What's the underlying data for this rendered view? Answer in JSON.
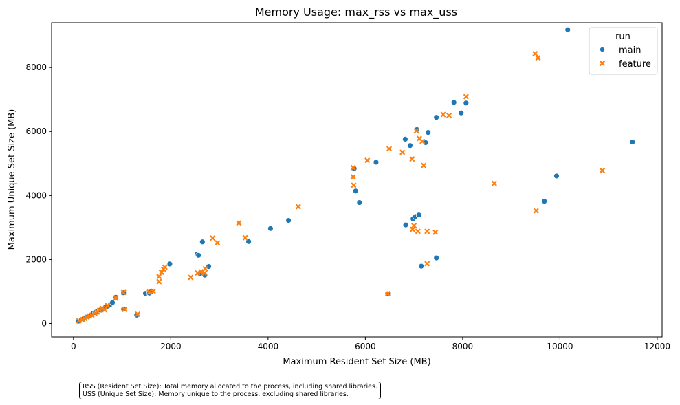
{
  "chart_data": {
    "type": "scatter",
    "title": "Memory Usage: max_rss vs max_uss",
    "xlabel": "Maximum Resident Set Size (MB)",
    "ylabel": "Maximum Unique Set Size (MB)",
    "xlim": [
      -450,
      12100
    ],
    "ylim": [
      -420,
      9400
    ],
    "xticks": [
      0,
      2000,
      4000,
      6000,
      8000,
      10000,
      12000
    ],
    "xtick_labels": [
      "0",
      "2000",
      "4000",
      "6000",
      "8000",
      "10000",
      "12000"
    ],
    "yticks": [
      0,
      2000,
      4000,
      6000,
      8000
    ],
    "ytick_labels": [
      "0",
      "2000",
      "4000",
      "6000",
      "8000"
    ],
    "grid": false,
    "legend": {
      "title": "run",
      "placement": "top-right"
    },
    "series": [
      {
        "name": "main",
        "marker": "circle",
        "color": "#1f77b4",
        "points": [
          [
            100,
            70
          ],
          [
            160,
            110
          ],
          [
            200,
            140
          ],
          [
            250,
            180
          ],
          [
            300,
            220
          ],
          [
            330,
            240
          ],
          [
            370,
            280
          ],
          [
            400,
            310
          ],
          [
            450,
            340
          ],
          [
            500,
            380
          ],
          [
            550,
            420
          ],
          [
            600,
            460
          ],
          [
            650,
            500
          ],
          [
            700,
            540
          ],
          [
            760,
            600
          ],
          [
            800,
            650
          ],
          [
            870,
            820
          ],
          [
            1030,
            960
          ],
          [
            1030,
            450
          ],
          [
            1300,
            260
          ],
          [
            1480,
            940
          ],
          [
            1560,
            950
          ],
          [
            1600,
            1000
          ],
          [
            1980,
            1860
          ],
          [
            2540,
            2170
          ],
          [
            2570,
            2130
          ],
          [
            2600,
            1560
          ],
          [
            2650,
            2550
          ],
          [
            2700,
            1510
          ],
          [
            2780,
            1780
          ],
          [
            3600,
            2560
          ],
          [
            4050,
            2970
          ],
          [
            4420,
            3220
          ],
          [
            5770,
            4840
          ],
          [
            5800,
            4140
          ],
          [
            5880,
            3780
          ],
          [
            6220,
            5040
          ],
          [
            6460,
            930
          ],
          [
            6820,
            5760
          ],
          [
            6830,
            3080
          ],
          [
            6920,
            5560
          ],
          [
            6980,
            3270
          ],
          [
            7030,
            3340
          ],
          [
            7060,
            6060
          ],
          [
            7100,
            3390
          ],
          [
            7150,
            1790
          ],
          [
            7240,
            5650
          ],
          [
            7290,
            5970
          ],
          [
            7460,
            2050
          ],
          [
            7460,
            6440
          ],
          [
            7820,
            6910
          ],
          [
            7970,
            6580
          ],
          [
            8070,
            6890
          ],
          [
            9680,
            3820
          ],
          [
            9930,
            4610
          ],
          [
            10160,
            9180
          ],
          [
            11490,
            5670
          ]
        ]
      },
      {
        "name": "feature",
        "marker": "x",
        "color": "#ff7f0e",
        "points": [
          [
            110,
            80
          ],
          [
            180,
            120
          ],
          [
            230,
            160
          ],
          [
            280,
            200
          ],
          [
            330,
            230
          ],
          [
            380,
            260
          ],
          [
            440,
            320
          ],
          [
            490,
            360
          ],
          [
            540,
            420
          ],
          [
            590,
            470
          ],
          [
            640,
            430
          ],
          [
            700,
            560
          ],
          [
            870,
            790
          ],
          [
            1030,
            970
          ],
          [
            1050,
            440
          ],
          [
            1320,
            290
          ],
          [
            1560,
            980
          ],
          [
            1640,
            1010
          ],
          [
            1760,
            1310
          ],
          [
            1760,
            1470
          ],
          [
            1810,
            1600
          ],
          [
            1850,
            1700
          ],
          [
            1880,
            1760
          ],
          [
            2410,
            1440
          ],
          [
            2550,
            1580
          ],
          [
            2620,
            1620
          ],
          [
            2690,
            1570
          ],
          [
            2710,
            1710
          ],
          [
            2860,
            2670
          ],
          [
            2960,
            2520
          ],
          [
            3400,
            3140
          ],
          [
            3530,
            2680
          ],
          [
            4620,
            3650
          ],
          [
            5750,
            4870
          ],
          [
            5750,
            4580
          ],
          [
            5760,
            4320
          ],
          [
            6040,
            5100
          ],
          [
            6460,
            930
          ],
          [
            6490,
            5460
          ],
          [
            6760,
            5350
          ],
          [
            6960,
            5140
          ],
          [
            6970,
            2940
          ],
          [
            7000,
            3060
          ],
          [
            7050,
            6020
          ],
          [
            7080,
            2880
          ],
          [
            7110,
            5780
          ],
          [
            7170,
            5690
          ],
          [
            7200,
            4940
          ],
          [
            7270,
            2880
          ],
          [
            7270,
            1870
          ],
          [
            7440,
            2850
          ],
          [
            7600,
            6530
          ],
          [
            7720,
            6500
          ],
          [
            8070,
            7090
          ],
          [
            8650,
            4380
          ],
          [
            9490,
            8430
          ],
          [
            9510,
            3520
          ],
          [
            9550,
            8300
          ],
          [
            10870,
            4780
          ]
        ]
      }
    ]
  },
  "note": {
    "line1": "RSS (Resident Set Size): Total memory allocated to the process, including shared libraries.",
    "line2": "USS (Unique Set Size): Memory unique to the process, excluding shared libraries."
  }
}
